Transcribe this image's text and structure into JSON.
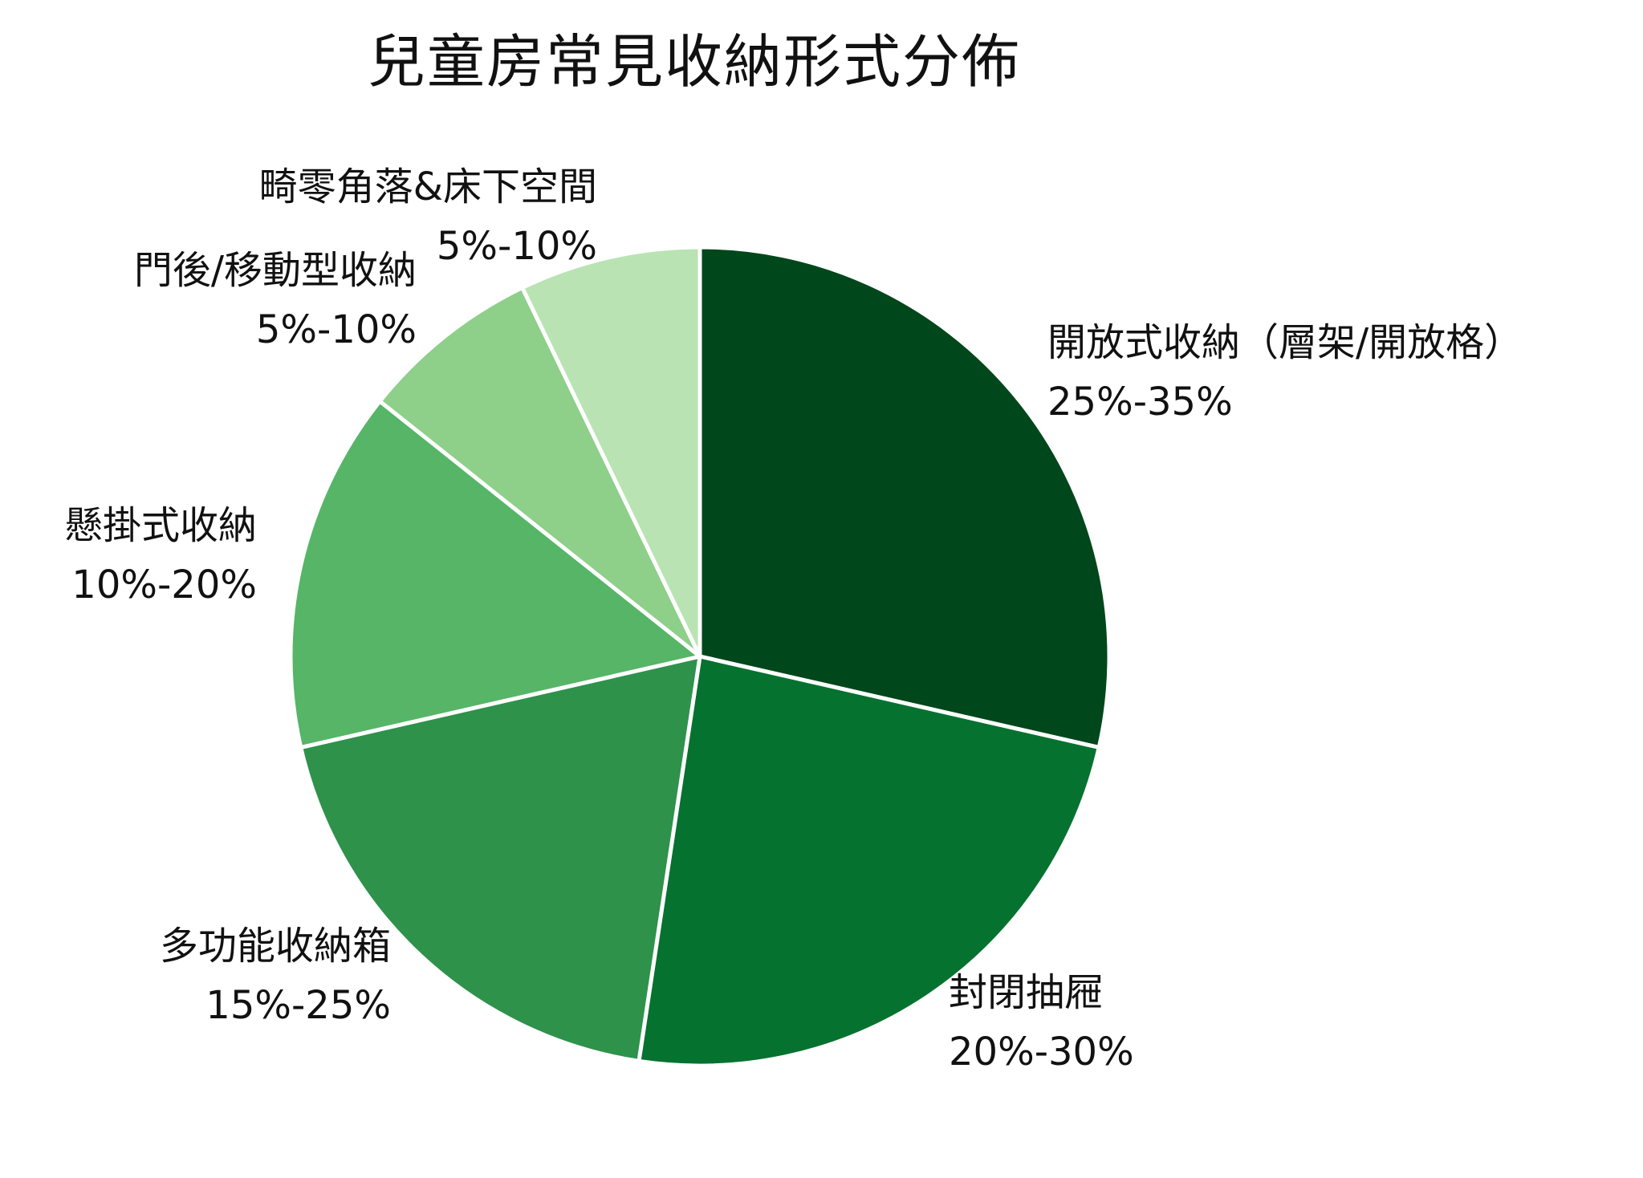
{
  "chart_data": {
    "type": "pie",
    "title": "兒童房常見收納形式分佈",
    "slices": [
      {
        "label": "開放式收納（層架/開放格）",
        "range": "25%-35%",
        "value": 30,
        "color": "#00471b"
      },
      {
        "label": "封閉抽屜",
        "range": "20%-30%",
        "value": 25,
        "color": "#067230"
      },
      {
        "label": "多功能收納箱",
        "range": "15%-25%",
        "value": 20,
        "color": "#2e924b"
      },
      {
        "label": "懸掛式收納",
        "range": "10%-20%",
        "value": 15,
        "color": "#56b567"
      },
      {
        "label": "門後/移動型收納",
        "range": "5%-10%",
        "value": 7.5,
        "color": "#8ecf89"
      },
      {
        "label": "畸零角落&床下空間",
        "range": "5%-10%",
        "value": 7.5,
        "color": "#b9e3b3"
      }
    ],
    "start_angle": "12 o'clock",
    "direction": "clockwise"
  }
}
